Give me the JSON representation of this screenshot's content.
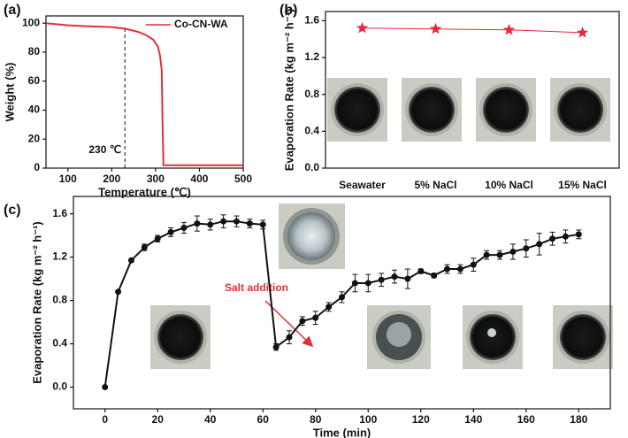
{
  "chart_data": [
    {
      "type": "line",
      "label": "(a)",
      "xlabel": "Temperature (℃)",
      "ylabel": "Weight (%)",
      "x": [
        50,
        100,
        150,
        200,
        230,
        260,
        280,
        295,
        305,
        310,
        314,
        316,
        318,
        330,
        400,
        500
      ],
      "series": [
        {
          "name": "Co-CN-WA",
          "color": "#e0303a",
          "values": [
            100,
            98.5,
            97.8,
            97.3,
            96.2,
            94,
            91.5,
            88.5,
            84,
            78,
            68,
            30,
            2,
            2,
            2,
            2
          ]
        }
      ],
      "xlim": [
        50,
        500
      ],
      "xticks": [
        100,
        200,
        300,
        400,
        500
      ],
      "ylim": [
        0,
        105
      ],
      "yticks": [
        0,
        20,
        40,
        60,
        80,
        100
      ],
      "annotation": {
        "text": "230 ℃",
        "x": 230
      },
      "legend": "upper right"
    },
    {
      "type": "line",
      "label": "(b)",
      "ylabel": "Evaporation Rate (kg m⁻² h⁻¹)",
      "categories": [
        "Seawater",
        "5% NaCl",
        "10% NaCl",
        "15% NaCl"
      ],
      "series": [
        {
          "color": "#e8283a",
          "marker": "star",
          "values": [
            1.52,
            1.51,
            1.5,
            1.47
          ]
        }
      ],
      "ylim": [
        0,
        1.7
      ],
      "yticks": [
        {
          "value": 0,
          "label": "0.0"
        },
        0.4,
        0.8,
        1.2,
        1.6
      ]
    },
    {
      "type": "line",
      "label": "(c)",
      "xlabel": "Time (min)",
      "ylabel": "Evaporation Rate (kg m⁻² h⁻¹)",
      "x": [
        0,
        5,
        10,
        15,
        20,
        25,
        30,
        35,
        40,
        45,
        50,
        55,
        60,
        65,
        70,
        75,
        80,
        85,
        90,
        95,
        100,
        105,
        110,
        115,
        120,
        125,
        130,
        135,
        140,
        145,
        150,
        155,
        160,
        165,
        170,
        175,
        180
      ],
      "series": [
        {
          "color": "#111111",
          "marker": "circle",
          "values": [
            0,
            0.88,
            1.17,
            1.29,
            1.37,
            1.43,
            1.47,
            1.51,
            1.5,
            1.53,
            1.53,
            1.51,
            1.5,
            0.37,
            0.46,
            0.61,
            0.64,
            0.74,
            0.83,
            0.96,
            0.96,
            0.99,
            1.02,
            1.0,
            1.07,
            1.03,
            1.09,
            1.09,
            1.13,
            1.22,
            1.22,
            1.25,
            1.28,
            1.32,
            1.37,
            1.39,
            1.41
          ],
          "errors": [
            0,
            0,
            0,
            0.03,
            0.03,
            0.04,
            0.05,
            0.07,
            0.05,
            0.06,
            0.05,
            0.04,
            0.04,
            0.03,
            0.06,
            0.04,
            0.06,
            0.04,
            0.05,
            0.08,
            0.08,
            0.06,
            0.06,
            0.09,
            0.02,
            0.02,
            0.04,
            0.04,
            0.06,
            0.04,
            0.04,
            0.07,
            0.08,
            0.1,
            0.06,
            0.06,
            0.04
          ]
        }
      ],
      "xlim": [
        -12,
        192
      ],
      "xticks": [
        0,
        20,
        40,
        60,
        80,
        100,
        120,
        140,
        160,
        180
      ],
      "ylim": [
        -0.2,
        1.76
      ],
      "yticks": [
        {
          "value": 0,
          "label": "0.0"
        },
        0.4,
        0.8,
        1.2,
        1.6
      ],
      "annotation": {
        "text": "Salt addition",
        "x": 65
      }
    }
  ]
}
